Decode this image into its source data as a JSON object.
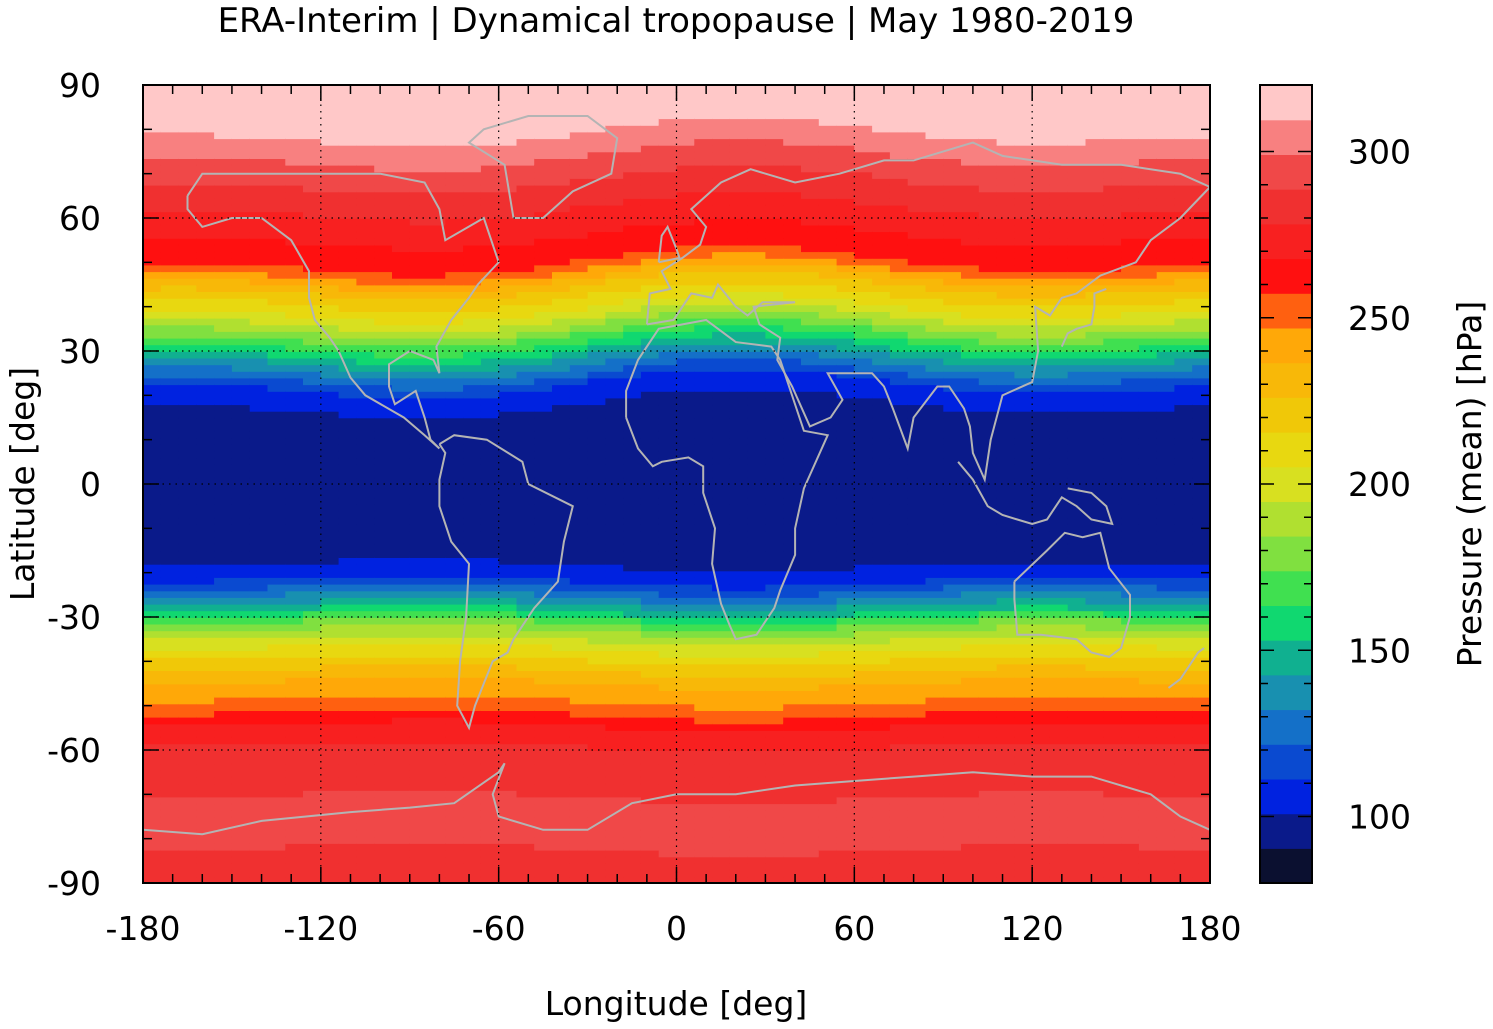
{
  "chart_data": {
    "type": "heatmap",
    "title": "ERA-Interim | Dynamical tropopause | May 1980-2019",
    "xlabel": "Longitude [deg]",
    "ylabel": "Latitude [deg]",
    "colorbar_label": "Pressure (mean) [hPa]",
    "xlim": [
      -180,
      180
    ],
    "ylim": [
      -90,
      90
    ],
    "xticks": [
      "-180",
      "-120",
      "-60",
      "0",
      "60",
      "120",
      "180"
    ],
    "yticks": [
      "90",
      "60",
      "30",
      "0",
      "-30",
      "-60",
      "-90"
    ],
    "colorbar_range": [
      80,
      320
    ],
    "colorbar_ticks": [
      "100",
      "150",
      "200",
      "250",
      "300"
    ],
    "grid": true,
    "colormap": [
      "#0b1030",
      "#0a1a8a",
      "#0022e0",
      "#0a4ad0",
      "#1470c8",
      "#1890b0",
      "#10b090",
      "#10d870",
      "#40e050",
      "#80e040",
      "#b0e030",
      "#d8e020",
      "#e8d810",
      "#f0c808",
      "#f8b808",
      "#ffa808",
      "#ff6010",
      "#ff1010",
      "#f82020",
      "#f03030",
      "#f04848",
      "#f88080",
      "#ffc8c8"
    ],
    "latitude_profile": [
      {
        "lat": 90,
        "value": 318
      },
      {
        "lat": 80,
        "value": 312
      },
      {
        "lat": 70,
        "value": 292
      },
      {
        "lat": 60,
        "value": 275
      },
      {
        "lat": 50,
        "value": 258
      },
      {
        "lat": 44,
        "value": 225
      },
      {
        "lat": 38,
        "value": 200
      },
      {
        "lat": 32,
        "value": 165
      },
      {
        "lat": 27,
        "value": 135
      },
      {
        "lat": 22,
        "value": 110
      },
      {
        "lat": 15,
        "value": 95
      },
      {
        "lat": 0,
        "value": 92
      },
      {
        "lat": -10,
        "value": 94
      },
      {
        "lat": -17,
        "value": 98
      },
      {
        "lat": -22,
        "value": 112
      },
      {
        "lat": -28,
        "value": 150
      },
      {
        "lat": -32,
        "value": 180
      },
      {
        "lat": -38,
        "value": 210
      },
      {
        "lat": -44,
        "value": 235
      },
      {
        "lat": -50,
        "value": 250
      },
      {
        "lat": -56,
        "value": 275
      },
      {
        "lat": -65,
        "value": 285
      },
      {
        "lat": -75,
        "value": 292
      },
      {
        "lat": -90,
        "value": 285
      }
    ]
  }
}
